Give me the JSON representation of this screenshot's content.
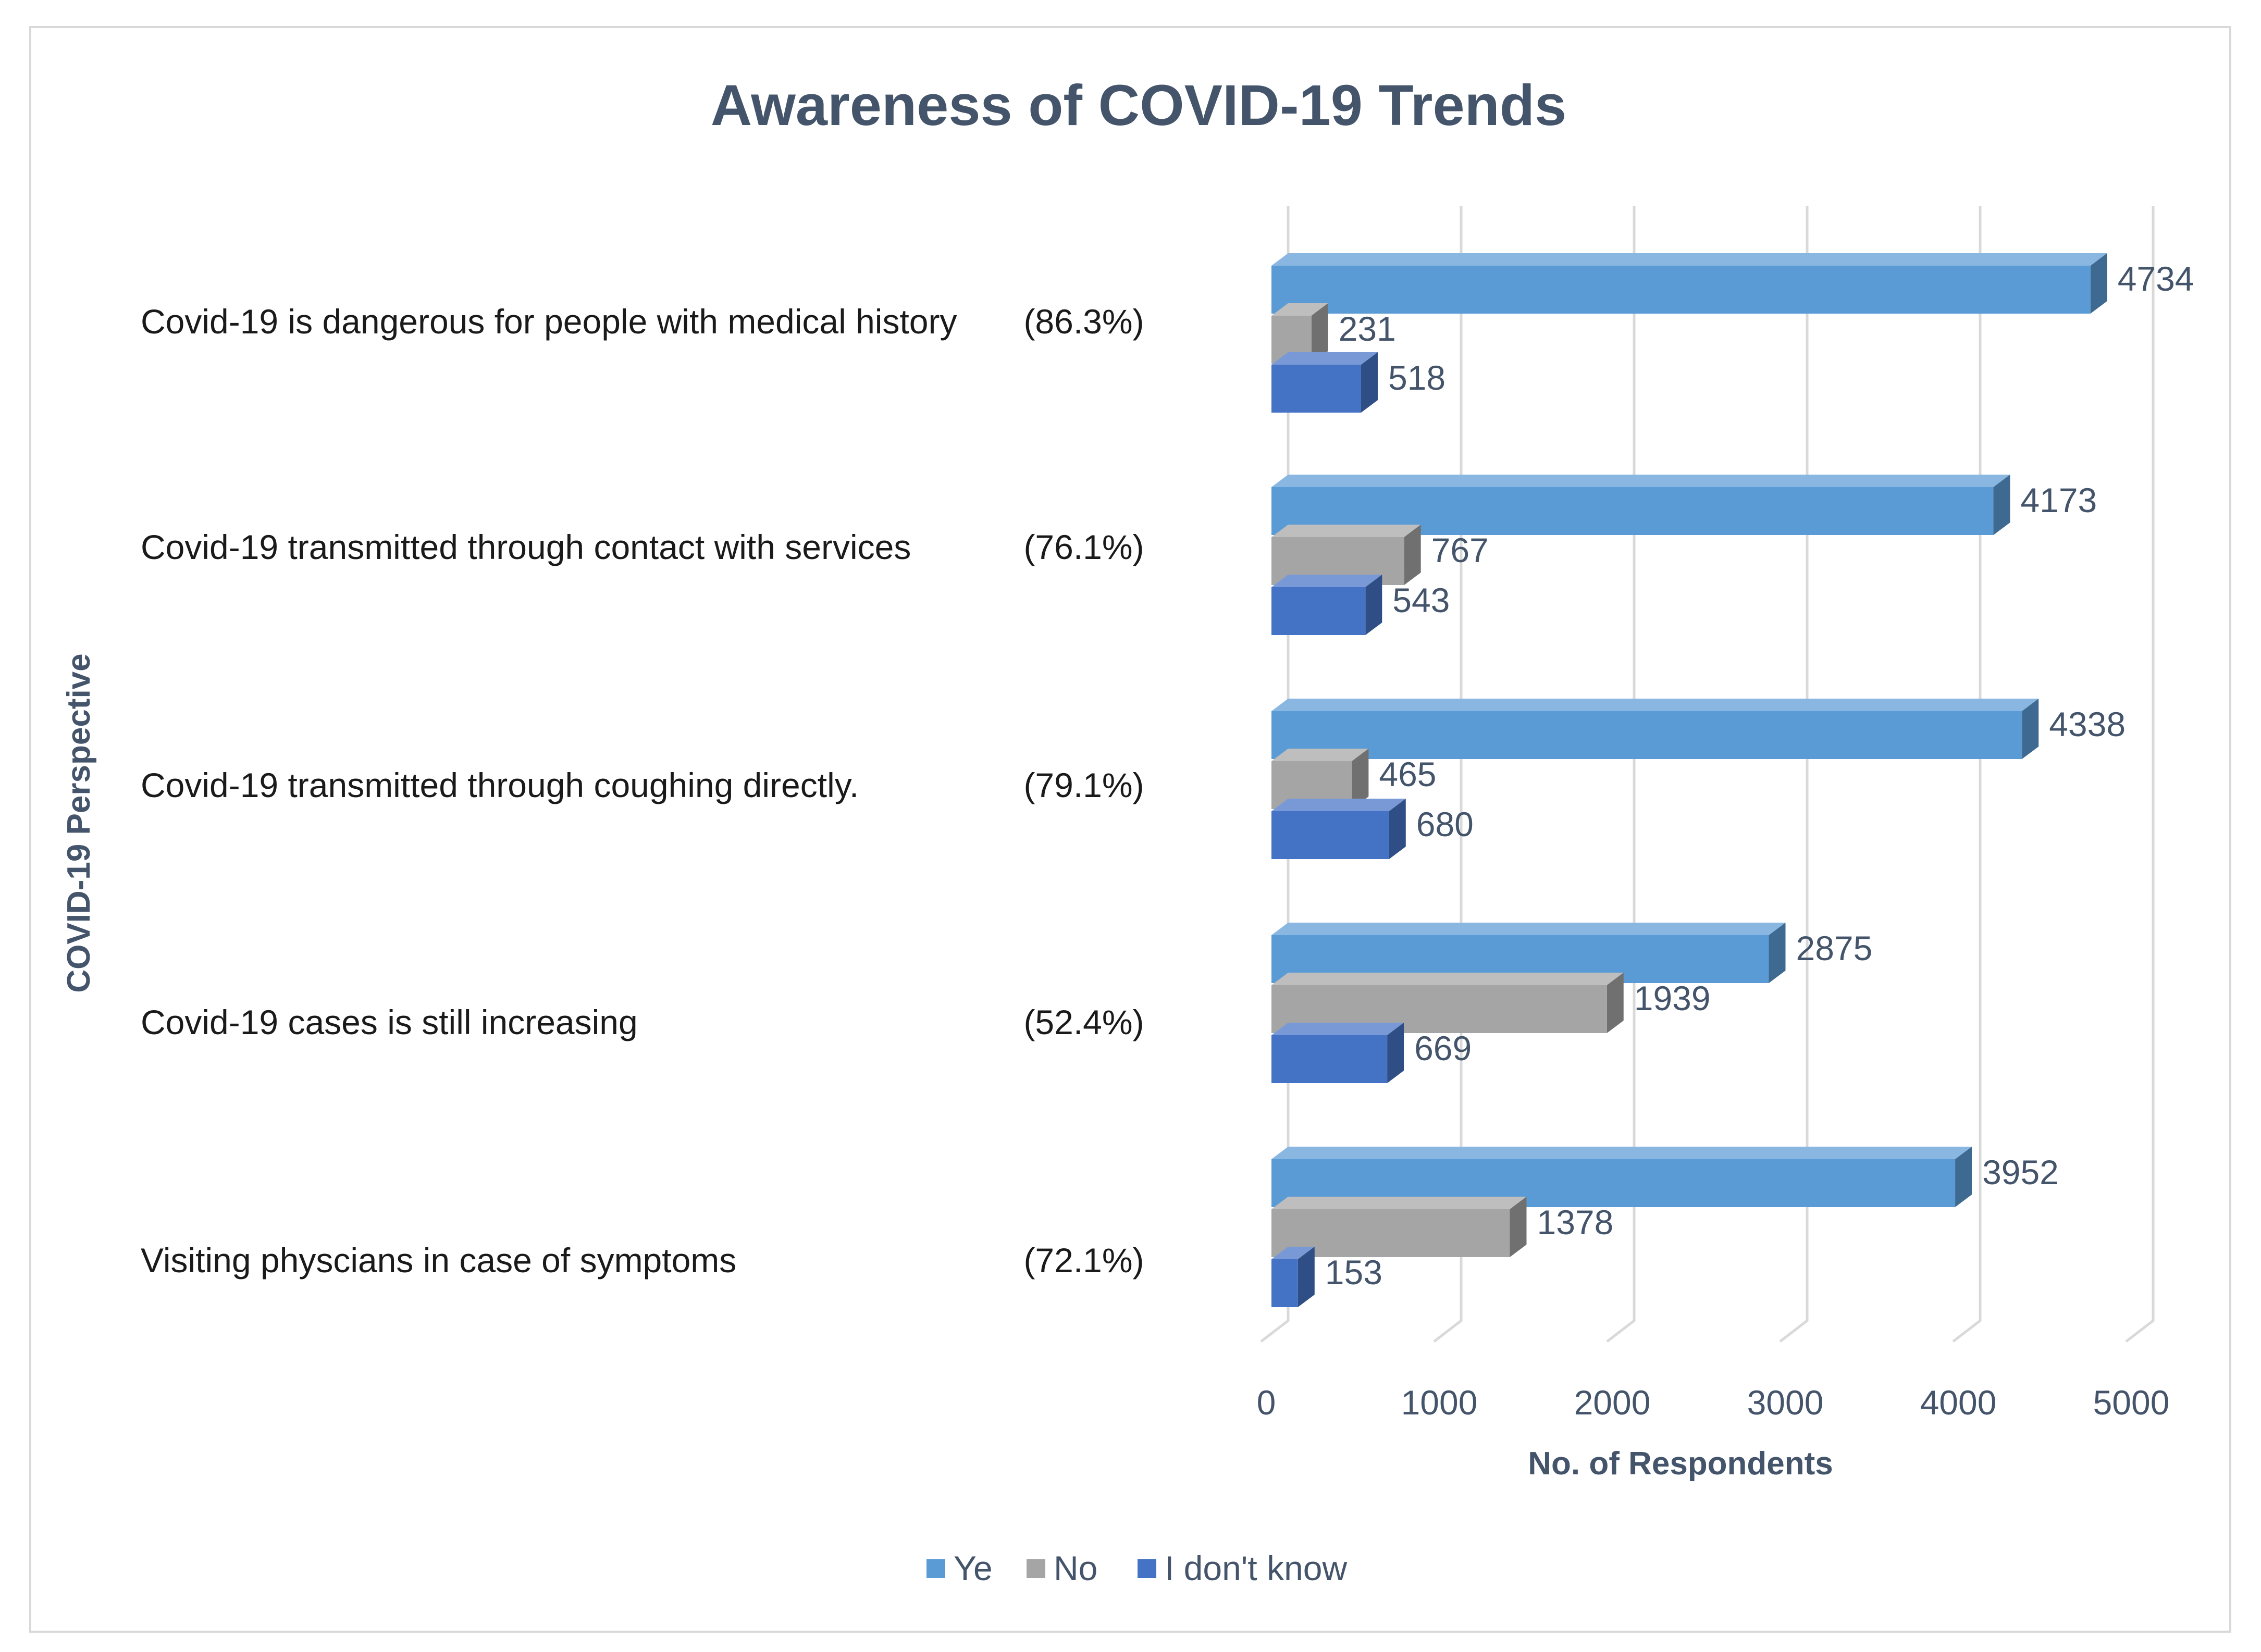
{
  "colors": {
    "yes": "#5b9bd5",
    "no": "#a5a5a5",
    "dont_know": "#4472c4",
    "title": "#44546a",
    "grid": "#d9d9d9"
  },
  "chart_data": {
    "type": "bar",
    "orientation": "horizontal",
    "style": "3d-clustered",
    "title": "Awareness of COVID-19 Trends",
    "xlabel": "No. of Respondents",
    "ylabel": "COVID-19 Perspective",
    "xlim": [
      0,
      5000
    ],
    "x_ticks": [
      "0",
      "1000",
      "2000",
      "3000",
      "4000",
      "5000"
    ],
    "grid": true,
    "legend_position": "bottom",
    "categories": [
      "Covid-19 is dangerous for people with medical history",
      "Covid-19 transmitted through contact with services",
      "Covid-19 transmitted through coughing directly.",
      "Covid-19 cases is still increasing",
      "Visiting physcians in case of symptoms"
    ],
    "category_percentages": [
      "(86.3%)",
      "(76.1%)",
      "(79.1%)",
      "(52.4%)",
      "(72.1%)"
    ],
    "series": [
      {
        "name": "Ye",
        "color_key": "yes",
        "values": [
          4734,
          4173,
          4338,
          2875,
          3952
        ]
      },
      {
        "name": "No",
        "color_key": "no",
        "values": [
          231,
          767,
          465,
          1939,
          1378
        ]
      },
      {
        "name": "I don't know",
        "color_key": "dont_know",
        "values": [
          518,
          543,
          680,
          669,
          153
        ]
      }
    ]
  }
}
